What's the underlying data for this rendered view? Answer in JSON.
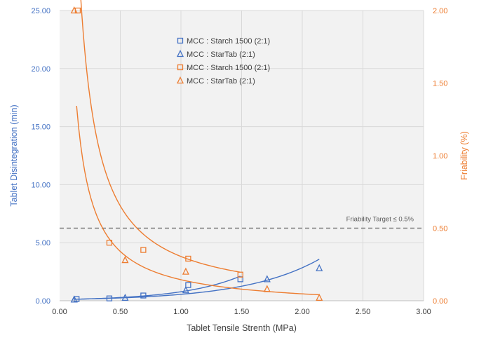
{
  "chart_data": {
    "type": "scatter",
    "title": "",
    "xlabel": "Tablet Tensile Strenth (MPa)",
    "ylabel": "Tablet Disintegration (min)",
    "y2label": "Friability (%)",
    "xlim": [
      0,
      3
    ],
    "ylim": [
      0,
      25
    ],
    "y2lim": [
      0,
      2
    ],
    "xticks": [
      "0.00",
      "0.50",
      "1.00",
      "1.50",
      "2.00",
      "2.50",
      "3.00"
    ],
    "yticks": [
      "0.00",
      "5.00",
      "10.00",
      "15.00",
      "20.00",
      "25.00"
    ],
    "y2ticks": [
      "0.00",
      "0.50",
      "1.00",
      "1.50",
      "2.00"
    ],
    "grid": true,
    "legend_position": "top-center",
    "colors": {
      "blue": "#4472C4",
      "orange": "#ED7D31",
      "target": "#7F7F7F",
      "plot_bg": "#F2F2F2"
    },
    "reference_line": {
      "axis": "y2",
      "value": 0.5,
      "label": "Friability Target ≤ 0.5%"
    },
    "series": [
      {
        "name": "MCC : Starch 1500 (2:1)",
        "axis": "y1",
        "marker": "square",
        "color": "#4472C4",
        "x": [
          0.14,
          0.41,
          0.69,
          1.06,
          1.49
        ],
        "y": [
          0.15,
          0.2,
          0.45,
          1.35,
          1.85
        ]
      },
      {
        "name": "MCC : StarTab (2:1)",
        "axis": "y1",
        "marker": "triangle",
        "color": "#4472C4",
        "x": [
          0.12,
          0.54,
          1.04,
          1.71,
          2.14
        ],
        "y": [
          0.1,
          0.25,
          0.9,
          1.85,
          2.8
        ]
      },
      {
        "name": "MCC : Starch 1500 (2:1)",
        "axis": "y2",
        "marker": "square",
        "color": "#ED7D31",
        "x": [
          0.15,
          0.41,
          0.69,
          1.06,
          1.49
        ],
        "y": [
          2.0,
          0.4,
          0.35,
          0.29,
          0.18
        ]
      },
      {
        "name": "MCC : StarTab (2:1)",
        "axis": "y2",
        "marker": "triangle",
        "color": "#ED7D31",
        "x": [
          0.12,
          0.54,
          1.04,
          1.71,
          2.14
        ],
        "y": [
          2.0,
          0.28,
          0.2,
          0.08,
          0.02
        ]
      }
    ],
    "trendlines": [
      {
        "for": "MCC : Starch 1500 (2:1) disintegration",
        "axis": "y1",
        "type": "exponential",
        "a": 0.1,
        "b": 2.05,
        "x_range": [
          0.14,
          1.49
        ],
        "color": "#4472C4"
      },
      {
        "for": "MCC : StarTab (2:1) disintegration",
        "axis": "y1",
        "type": "exponential",
        "a": 0.107,
        "b": 1.64,
        "x_range": [
          0.12,
          2.14
        ],
        "color": "#4472C4"
      },
      {
        "for": "MCC : Starch 1500 (2:1) friability",
        "axis": "y2",
        "type": "power",
        "a": 0.305,
        "b": -1.1,
        "x_range": [
          0.15,
          1.49
        ],
        "color": "#ED7D31"
      },
      {
        "for": "MCC : StarTab (2:1) friability",
        "axis": "y2",
        "type": "hyperbolic",
        "a": 0.195,
        "c": -0.05,
        "x_range": [
          0.14,
          2.14
        ],
        "color": "#ED7D31"
      }
    ]
  }
}
